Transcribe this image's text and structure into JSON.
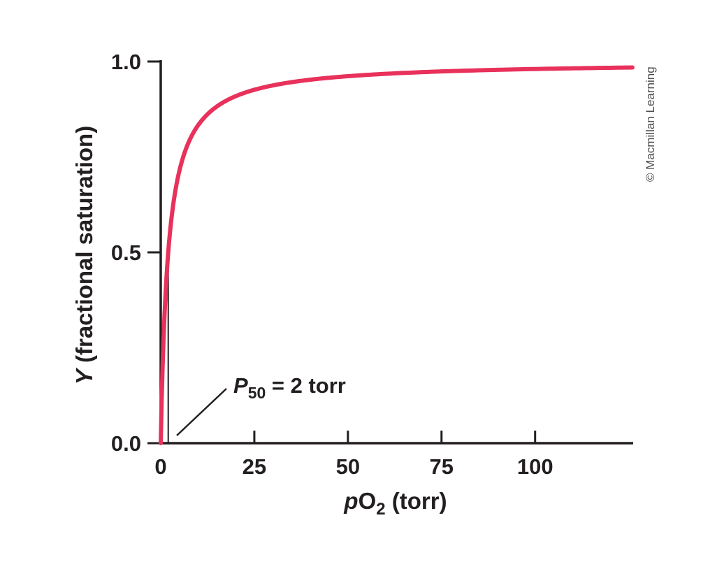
{
  "figure": {
    "credit": "© Macmillan Learning",
    "background": "#ffffff",
    "text_color": "#231f20"
  },
  "chart_data": {
    "type": "line",
    "title": "",
    "xlabel": "pO2 (torr)",
    "xlabel_parts": {
      "p_italic": "p",
      "molecule": "O",
      "subscript": "2",
      "rest": " (torr)"
    },
    "ylabel": "Y (fractional saturation)",
    "ylabel_parts": {
      "y_italic": "Y",
      "rest": " (fractional saturation)"
    },
    "xlim": [
      0,
      126
    ],
    "ylim": [
      0,
      1.0
    ],
    "x_ticks": [
      0,
      25,
      50,
      75,
      100
    ],
    "x_tick_labels": [
      "0",
      "25",
      "50",
      "75",
      "100"
    ],
    "y_ticks": [
      0,
      0.5,
      1.0
    ],
    "y_tick_labels": [
      "0.0",
      "0.5",
      "1.0"
    ],
    "grid": false,
    "legend": false,
    "curve": {
      "name": "oxygen-binding hyperbola",
      "model": "Y = pO2 / (P50 + pO2)",
      "p50_torr": 2,
      "color": "#e8315b",
      "stroke_width": 6
    },
    "series": [
      {
        "name": "Y (fractional saturation)",
        "x": [
          0,
          1,
          2,
          3,
          5,
          10,
          15,
          20,
          25,
          30,
          40,
          50,
          60,
          70,
          80,
          90,
          100,
          110,
          120,
          126
        ],
        "values": [
          0,
          0.333,
          0.5,
          0.6,
          0.714,
          0.833,
          0.882,
          0.909,
          0.926,
          0.938,
          0.952,
          0.962,
          0.968,
          0.972,
          0.976,
          0.978,
          0.98,
          0.982,
          0.984,
          0.984
        ]
      }
    ],
    "annotation": {
      "text": "P50 = 2 torr",
      "parts": {
        "symbol_italic": "P",
        "subscript": "50",
        "rest": " = 2 torr"
      },
      "points_to_x_torr": 2
    },
    "reference_line": {
      "x": 2,
      "y_from": 0,
      "y_to": 0.5
    }
  }
}
